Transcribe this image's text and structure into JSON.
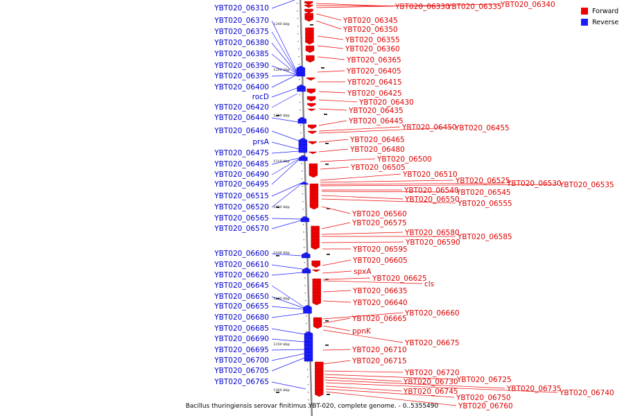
{
  "title": "Bacillus thuringiensis serovar finitimus YBT-020, complete genome. - 0..5355490",
  "legend": [
    {
      "label": "Forward",
      "color": "#ee0000"
    },
    {
      "label": "Reverse",
      "color": "#1a1aff"
    }
  ],
  "colors": {
    "forward": "#ee0000",
    "reverse": "#1a1aff",
    "backbone": "#888888"
  },
  "ticks": [
    "1280 kbp",
    "1290 kbp",
    "1300 kbp",
    "1310 kbp",
    "1320 kbp",
    "1330 kbp",
    "1340 kbp",
    "1350 kbp",
    "1360 kbp"
  ],
  "reverse_genes": [
    "YBT020_06310",
    "YBT020_06370",
    "YBT020_06375",
    "YBT020_06380",
    "YBT020_06385",
    "YBT020_06390",
    "YBT020_06395",
    "YBT020_06400",
    "rocD",
    "YBT020_06420",
    "YBT020_06440",
    "YBT020_06460",
    "prsA",
    "YBT020_06475",
    "YBT020_06485",
    "YBT020_06490",
    "YBT020_06495",
    "YBT020_06515",
    "YBT020_06520",
    "YBT020_06565",
    "YBT020_06570",
    "YBT020_06600",
    "YBT020_06610",
    "YBT020_06620",
    "YBT020_06645",
    "YBT020_06650",
    "YBT020_06655",
    "YBT020_06680",
    "YBT020_06685",
    "YBT020_06690",
    "YBT020_06695",
    "YBT020_06700",
    "YBT020_06705",
    "YBT020_06765"
  ],
  "forward_genes": [
    "YBT020_06330",
    "YBT020_06335",
    "YBT020_06340",
    "YBT020_06345",
    "YBT020_06350",
    "YBT020_06355",
    "YBT020_06360",
    "YBT020_06365",
    "YBT020_06405",
    "YBT020_06415",
    "YBT020_06425",
    "YBT020_06430",
    "YBT020_06435",
    "YBT020_06445",
    "YBT020_06450",
    "YBT020_06455",
    "YBT020_06465",
    "YBT020_06480",
    "YBT020_06500",
    "YBT020_06505",
    "YBT020_06510",
    "YBT020_06525",
    "YBT020_06530",
    "YBT020_06535",
    "YBT020_06540",
    "YBT020_06545",
    "YBT020_06550",
    "YBT020_06555",
    "YBT020_06560",
    "YBT020_06575",
    "YBT020_06580",
    "YBT020_06585",
    "YBT020_06590",
    "YBT020_06595",
    "YBT020_06605",
    "spxA",
    "YBT020_06625",
    "cls",
    "YBT020_06635",
    "YBT020_06640",
    "YBT020_06660",
    "YBT020_06665",
    "ppnK",
    "YBT020_06675",
    "YBT020_06710",
    "YBT020_06715",
    "YBT020_06720",
    "YBT020_06725",
    "YBT020_06730",
    "YBT020_06735",
    "YBT020_06740",
    "YBT020_06745",
    "YBT020_06750",
    "YBT020_06760"
  ]
}
